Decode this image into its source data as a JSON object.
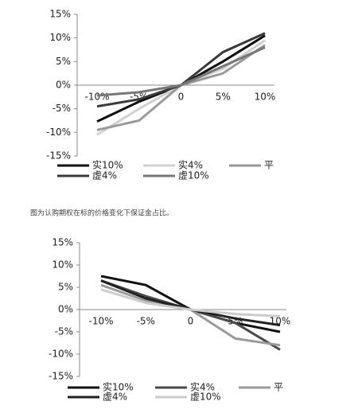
{
  "chart_data": [
    {
      "type": "line",
      "categories": [
        "-10%",
        "-5%",
        "0",
        "5%",
        "10%"
      ],
      "ylim": [
        -15,
        15
      ],
      "yticks": [
        {
          "value": -15,
          "label": "-15%"
        },
        {
          "value": -10,
          "label": "-10%"
        },
        {
          "value": -5,
          "label": "-5%"
        },
        {
          "value": 0,
          "label": "0%"
        },
        {
          "value": 5,
          "label": "5%"
        },
        {
          "value": 10,
          "label": "10%"
        },
        {
          "value": 15,
          "label": "15%"
        }
      ],
      "series": [
        {
          "name": "实10%",
          "color": "#111111",
          "values": [
            -7.7,
            -3.5,
            0,
            5,
            10.5
          ]
        },
        {
          "name": "实4%",
          "color": "#d0d0d0",
          "values": [
            -10.5,
            -5,
            0,
            3.5,
            9.5
          ]
        },
        {
          "name": "平",
          "color": "#9a9a9a",
          "values": [
            -9.5,
            -7.5,
            0,
            2.5,
            8.5
          ]
        },
        {
          "name": "虚4%",
          "color": "#3a3a3a",
          "values": [
            -4.5,
            -3,
            0,
            7,
            11
          ]
        },
        {
          "name": "虚10%",
          "color": "#777777",
          "values": [
            -2.2,
            -1.5,
            0,
            4,
            8
          ]
        }
      ]
    },
    {
      "type": "line",
      "categories": [
        "-10%",
        "-5%",
        "0",
        "5%",
        "10%"
      ],
      "ylim": [
        -15,
        15
      ],
      "yticks": [
        {
          "value": -15,
          "label": "-15%"
        },
        {
          "value": -10,
          "label": "-10%"
        },
        {
          "value": -5,
          "label": "-5%"
        },
        {
          "value": 0,
          "label": "0%"
        },
        {
          "value": 5,
          "label": "5%"
        },
        {
          "value": 10,
          "label": "10%"
        },
        {
          "value": 15,
          "label": "15%"
        }
      ],
      "series": [
        {
          "name": "实10%",
          "color": "#111111",
          "values": [
            7.5,
            5.5,
            0,
            -3,
            -5
          ]
        },
        {
          "name": "实4%",
          "color": "#4a4a4a",
          "values": [
            6.5,
            3,
            0,
            -3,
            -9
          ]
        },
        {
          "name": "平",
          "color": "#9a9a9a",
          "values": [
            5.5,
            2,
            0,
            -6.5,
            -8
          ]
        },
        {
          "name": "虚4%",
          "color": "#222222",
          "values": [
            6.5,
            2.5,
            0,
            -2,
            -3.5
          ]
        },
        {
          "name": "虚10%",
          "color": "#cccccc",
          "values": [
            4.5,
            1.5,
            0,
            -1,
            -1.5
          ]
        }
      ]
    }
  ],
  "caption": "图为认购期权在标的价格变化下保证金占比。"
}
